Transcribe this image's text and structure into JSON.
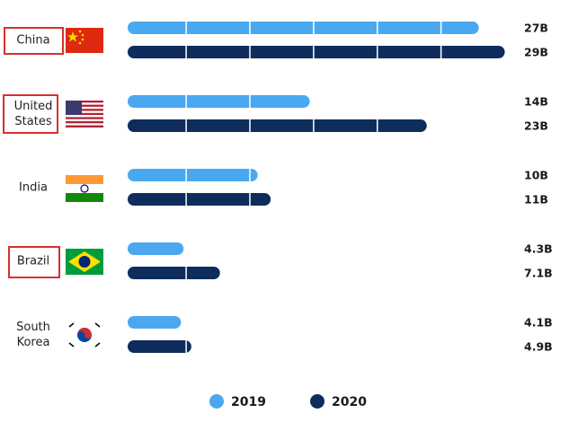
{
  "chart_data": {
    "type": "bar",
    "orientation": "horizontal",
    "categories": [
      "China",
      "United States",
      "India",
      "Brazil",
      "South Korea"
    ],
    "series": [
      {
        "name": "2019",
        "color": "#4aa8f0",
        "values": [
          27,
          14,
          10,
          4.3,
          4.1
        ],
        "value_labels": [
          "27B",
          "14B",
          "10B",
          "4.3B",
          "4.1B"
        ]
      },
      {
        "name": "2020",
        "color": "#0f2d5c",
        "values": [
          29,
          23,
          11,
          7.1,
          4.9
        ],
        "value_labels": [
          "29B",
          "23B",
          "11B",
          "7.1B",
          "4.9B"
        ]
      }
    ],
    "xlim": [
      0,
      30
    ],
    "xgrid": [
      4.5,
      9.4,
      14.3,
      19.2,
      24.1
    ],
    "grid_color": "#ffffff",
    "legend": "bottom"
  }
}
